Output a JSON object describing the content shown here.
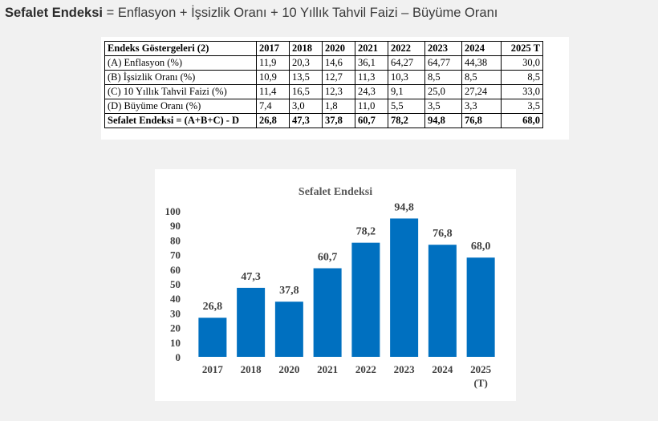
{
  "header": {
    "title": "Sefalet Endeksi",
    "equals": "=",
    "formula": "Enflasyon + İşsizlik Oranı + 10 Yıllık Tahvil Faizi – Büyüme Oranı"
  },
  "table": {
    "columns": [
      "Endeks Göstergeleri (2)",
      "2017",
      "2018",
      "2020",
      "2021",
      "2022",
      "2023",
      "2024",
      "2025 T"
    ],
    "rows": [
      [
        "(A) Enflasyon (%)",
        "11,9",
        "20,3",
        "14,6",
        "36,1",
        "64,27",
        "64,77",
        "44,38",
        "30,0"
      ],
      [
        "(B) İşsizlik Oranı (%)",
        "10,9",
        "13,5",
        "12,7",
        "11,3",
        "10,3",
        "8,5",
        "8,5",
        "8,5"
      ],
      [
        "(C) 10 Yıllık Tahvil Faizi (%)",
        "11,4",
        "16,5",
        "12,3",
        "24,3",
        "9,1",
        "25,0",
        "27,24",
        "33,0"
      ],
      [
        "(D) Büyüme Oranı (%)",
        "7,4",
        "3,0",
        "1,8",
        "11,0",
        "5,5",
        "3,5",
        "3,3",
        "3,5"
      ],
      [
        "Sefalet Endeksi = (A+B+C) - D",
        "26,8",
        "47,3",
        "37,8",
        "60,7",
        "78,2",
        "94,8",
        "76,8",
        "68,0"
      ]
    ]
  },
  "chart_data": {
    "type": "bar",
    "title": "Sefalet Endeksi",
    "categories": [
      "2017",
      "2018",
      "2020",
      "2021",
      "2022",
      "2023",
      "2024",
      "2025"
    ],
    "category_sublabels": [
      "",
      "",
      "",
      "",
      "",
      "",
      "",
      "(T)"
    ],
    "values": [
      26.8,
      47.3,
      37.8,
      60.7,
      78.2,
      94.8,
      76.8,
      68.0
    ],
    "value_labels": [
      "26,8",
      "47,3",
      "37,8",
      "60,7",
      "78,2",
      "94,8",
      "76,8",
      "68,0"
    ],
    "ylim": [
      0,
      100
    ],
    "yticks": [
      "0",
      "10",
      "20",
      "30",
      "40",
      "50",
      "60",
      "70",
      "80",
      "90",
      "100"
    ],
    "bar_color": "#0070c0",
    "grid": false
  }
}
